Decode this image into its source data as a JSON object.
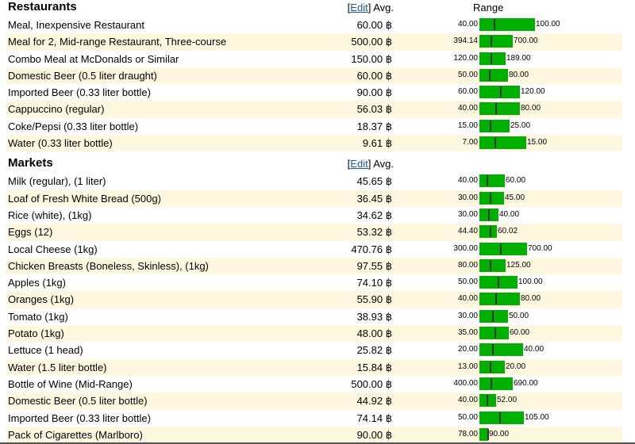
{
  "currency_symbol": "฿",
  "sections": [
    {
      "title": "Restaurants",
      "edit_label": "Edit",
      "avg_label": "Avg.",
      "range_label": "Range",
      "items": [
        {
          "name": "Meal, Inexpensive Restaurant",
          "avg": "60.00 ฿",
          "low": "40.00",
          "high": "100.00",
          "bar": 0.7,
          "tick": 0.25
        },
        {
          "name": "Meal for 2, Mid-range Restaurant, Three-course",
          "avg": "500.00 ฿",
          "low": "394.14",
          "high": "700.00",
          "bar": 0.42,
          "tick": 0.34
        },
        {
          "name": "Combo Meal at McDonalds or Similar",
          "avg": "150.00 ฿",
          "low": "120.00",
          "high": "189.00",
          "bar": 0.33,
          "tick": 0.43
        },
        {
          "name": "Domestic Beer (0.5 liter draught)",
          "avg": "60.00 ฿",
          "low": "50.00",
          "high": "80.00",
          "bar": 0.36,
          "tick": 0.33
        },
        {
          "name": "Imported Beer (0.33 liter bottle)",
          "avg": "90.00 ฿",
          "low": "60.00",
          "high": "120.00",
          "bar": 0.51,
          "tick": 0.5
        },
        {
          "name": "Cappuccino (regular)",
          "avg": "56.03 ฿",
          "low": "40.00",
          "high": "80.00",
          "bar": 0.51,
          "tick": 0.4
        },
        {
          "name": "Coke/Pepsi (0.33 liter bottle)",
          "avg": "18.37 ฿",
          "low": "15.00",
          "high": "25.00",
          "bar": 0.38,
          "tick": 0.34
        },
        {
          "name": "Water (0.33 liter bottle)",
          "avg": "9.61 ฿",
          "low": "7.00",
          "high": "15.00",
          "bar": 0.59,
          "tick": 0.33
        }
      ]
    },
    {
      "title": "Markets",
      "edit_label": "Edit",
      "avg_label": "Avg.",
      "range_label": "",
      "items": [
        {
          "name": "Milk (regular), (1 liter)",
          "avg": "45.65 ฿",
          "low": "40.00",
          "high": "60.00",
          "bar": 0.32,
          "tick": 0.28
        },
        {
          "name": "Loaf of Fresh White Bread (500g)",
          "avg": "36.45 ฿",
          "low": "30.00",
          "high": "45.00",
          "bar": 0.31,
          "tick": 0.43
        },
        {
          "name": "Rice (white), (1kg)",
          "avg": "34.62 ฿",
          "low": "30.00",
          "high": "40.00",
          "bar": 0.24,
          "tick": 0.46
        },
        {
          "name": "Eggs (12)",
          "avg": "53.32 ฿",
          "low": "44.40",
          "high": "60.02",
          "bar": 0.22,
          "tick": 0.57
        },
        {
          "name": "Local Cheese (1kg)",
          "avg": "470.76 ฿",
          "low": "300.00",
          "high": "700.00",
          "bar": 0.6,
          "tick": 0.43
        },
        {
          "name": "Chicken Breasts (Boneless, Skinless), (1kg)",
          "avg": "97.55 ฿",
          "low": "80.00",
          "high": "125.00",
          "bar": 0.33,
          "tick": 0.39
        },
        {
          "name": "Apples (1kg)",
          "avg": "74.10 ฿",
          "low": "50.00",
          "high": "100.00",
          "bar": 0.48,
          "tick": 0.48
        },
        {
          "name": "Oranges (1kg)",
          "avg": "55.90 ฿",
          "low": "40.00",
          "high": "80.00",
          "bar": 0.51,
          "tick": 0.4
        },
        {
          "name": "Tomato (1kg)",
          "avg": "38.93 ฿",
          "low": "30.00",
          "high": "50.00",
          "bar": 0.36,
          "tick": 0.45
        },
        {
          "name": "Potato (1kg)",
          "avg": "48.00 ฿",
          "low": "35.00",
          "high": "60.00",
          "bar": 0.37,
          "tick": 0.52
        },
        {
          "name": "Lettuce (1 head)",
          "avg": "25.82 ฿",
          "low": "20.00",
          "high": "40.00",
          "bar": 0.55,
          "tick": 0.29
        },
        {
          "name": "Water (1.5 liter bottle)",
          "avg": "15.84 ฿",
          "low": "13.00",
          "high": "20.00",
          "bar": 0.32,
          "tick": 0.41
        },
        {
          "name": "Bottle of Wine (Mid-Range)",
          "avg": "500.00 ฿",
          "low": "400.00",
          "high": "690.00",
          "bar": 0.42,
          "tick": 0.34
        },
        {
          "name": "Domestic Beer (0.5 liter bottle)",
          "avg": "44.92 ฿",
          "low": "40.00",
          "high": "52.00",
          "bar": 0.21,
          "tick": 0.41
        },
        {
          "name": "Imported Beer (0.33 liter bottle)",
          "avg": "74.14 ฿",
          "low": "50.00",
          "high": "105.00",
          "bar": 0.56,
          "tick": 0.44
        },
        {
          "name": "Pack of Cigarettes (Marlboro)",
          "avg": "90.00 ฿",
          "low": "78.00",
          "high": "90.00",
          "bar": 0.11,
          "tick": 0.9
        }
      ]
    }
  ]
}
